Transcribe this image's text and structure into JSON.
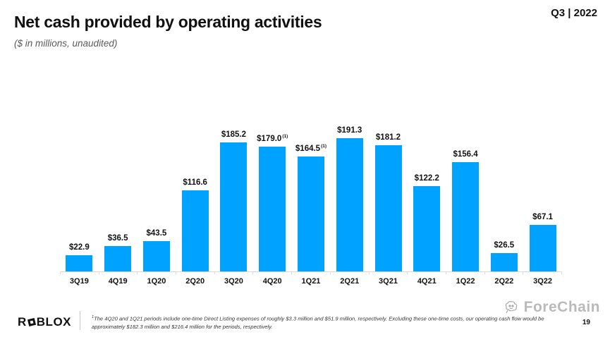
{
  "header": {
    "title": "Net cash provided by operating activities",
    "subtitle": "($ in millions, unaudited)",
    "period_badge": "Q3 | 2022"
  },
  "chart_data": {
    "type": "bar",
    "title": "Net cash provided by operating activities",
    "unit": "$ in millions",
    "categories": [
      "3Q19",
      "4Q19",
      "1Q20",
      "2Q20",
      "3Q20",
      "4Q20",
      "1Q21",
      "2Q21",
      "3Q21",
      "4Q21",
      "1Q22",
      "2Q22",
      "3Q22"
    ],
    "values": [
      22.9,
      36.5,
      43.5,
      116.6,
      185.2,
      179.0,
      164.5,
      191.3,
      181.2,
      122.2,
      156.4,
      26.5,
      67.1
    ],
    "data_labels": [
      "$22.9",
      "$36.5",
      "$43.5",
      "$116.6",
      "$185.2",
      "$179.0",
      "$164.5",
      "$191.3",
      "$181.2",
      "$122.2",
      "$156.4",
      "$26.5",
      "$67.1"
    ],
    "footnote_markers": [
      "",
      "",
      "",
      "",
      "",
      "(1)",
      "(1)",
      "",
      "",
      "",
      "",
      "",
      ""
    ],
    "bar_color": "#00a2ff",
    "ylim": [
      0,
      200
    ],
    "grid": false,
    "legend": "none",
    "xlabel": "",
    "ylabel": ""
  },
  "footer": {
    "logo_r": "R",
    "logo_blox": "BLOX",
    "footnote_sup": "1",
    "footnote": "The 4Q20 and 1Q21 periods include one-time Direct Listing expenses of roughly $3.3 million and $51.9 million, respectively. Excluding these one-time costs, our operating cash flow would be approximately $182.3 million and $216.4 million for the periods, respectively.",
    "watermark": "ForeChain",
    "page_number": "19"
  }
}
